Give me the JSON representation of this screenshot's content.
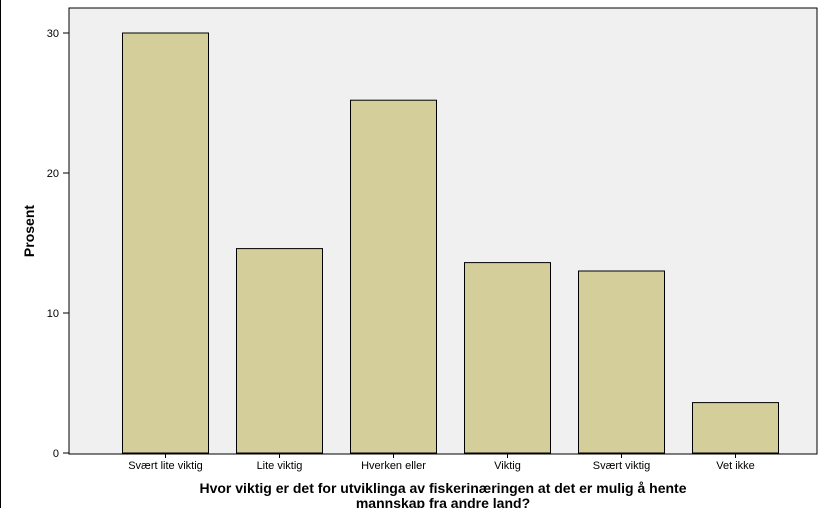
{
  "chart_data": {
    "type": "bar",
    "categories": [
      "Svært lite viktig",
      "Lite viktig",
      "Hverken eller",
      "Viktig",
      "Svært viktig",
      "Vet ikke"
    ],
    "values": [
      30.0,
      14.6,
      25.2,
      13.6,
      13.0,
      3.6
    ],
    "xlabel_lines": [
      "Hvor viktig er det for utviklinga av fiskerinæringen at det er mulig å hente",
      "mannskap fra andre land?"
    ],
    "ylabel": "Prosent",
    "ylim": [
      0,
      30
    ],
    "yticks": [
      "0",
      "10",
      "20",
      "30"
    ],
    "grid": false,
    "colors": {
      "bar_fill": "#d3ce9a",
      "bar_stroke": "#000000",
      "plot_bg": "#f0f0f0"
    }
  }
}
